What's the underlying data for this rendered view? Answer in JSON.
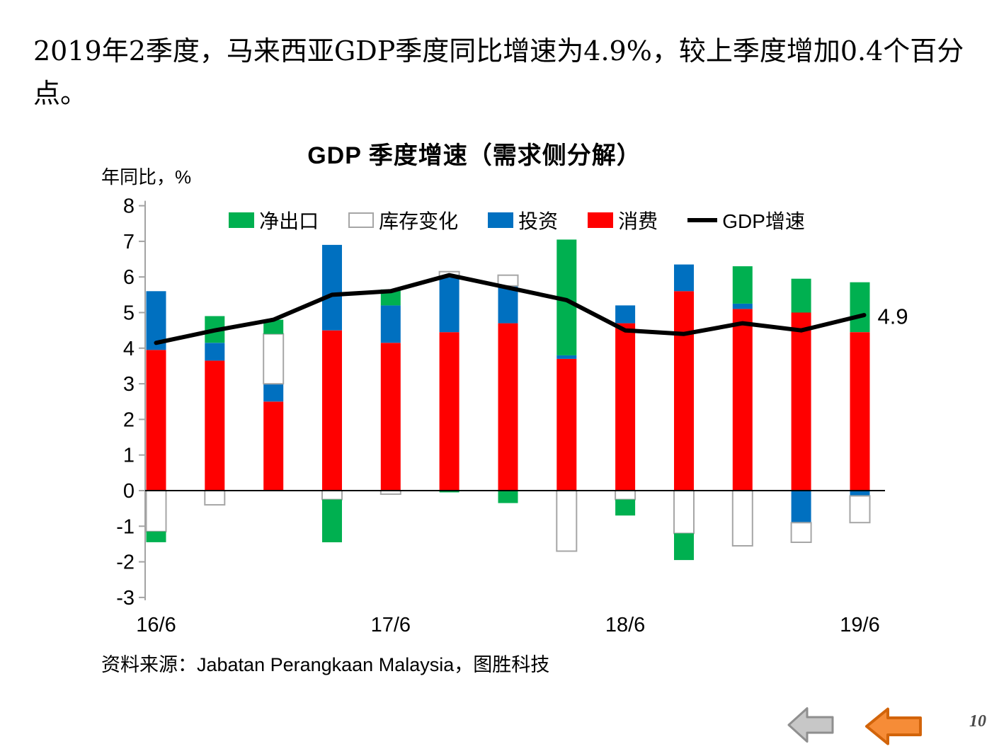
{
  "slide": {
    "heading": "2019年2季度，马来西亚GDP季度同比增速为4.9%，较上季度增加0.4个百分点。",
    "source": "资料来源：Jabatan Perangkaan Malaysia，图胜科技",
    "page_number": "10"
  },
  "nav": {
    "prev_arrow_gray": "left-arrow",
    "prev_arrow_orange": "left-arrow",
    "gray_fill": "#C7C7C7",
    "gray_border": "#8F8F8F",
    "orange_fill": "#F68C37",
    "orange_border": "#D2640A"
  },
  "chart_data": {
    "type": "bar",
    "stacked": true,
    "title": "GDP 季度增速（需求侧分解）",
    "ylabel": "年同比，%",
    "grid": false,
    "legend_position": "top-inside",
    "ylim": [
      -3,
      8
    ],
    "yticks": [
      8,
      7,
      6,
      5,
      4,
      3,
      2,
      1,
      0,
      -1,
      -2,
      -3
    ],
    "categories": [
      "16/6",
      "16/9",
      "16/12",
      "17/3",
      "17/6",
      "17/9",
      "17/12",
      "18/3",
      "18/6",
      "18/9",
      "18/12",
      "19/3",
      "19/6"
    ],
    "xticks_shown": [
      "16/6",
      "17/6",
      "18/6",
      "19/6"
    ],
    "series": [
      {
        "name": "消费",
        "color": "#FF0000",
        "values": [
          3.95,
          3.65,
          2.5,
          4.5,
          4.15,
          4.45,
          4.7,
          3.7,
          4.7,
          5.6,
          5.1,
          5.0,
          4.45
        ]
      },
      {
        "name": "投资",
        "color": "#0070C0",
        "values": [
          1.65,
          0.5,
          0.5,
          2.4,
          1.05,
          1.55,
          1.05,
          0.1,
          0.5,
          0.75,
          0.15,
          -0.9,
          -0.15
        ]
      },
      {
        "name": "库存变化",
        "color": "#FFFFFF",
        "border": "#A6A6A6",
        "values": [
          -1.15,
          -0.4,
          1.4,
          -0.25,
          -0.1,
          0.15,
          0.3,
          -1.7,
          -0.25,
          -1.2,
          -1.55,
          -0.55,
          -0.75
        ]
      },
      {
        "name": "净出口",
        "color": "#00B050",
        "values": [
          -0.3,
          0.75,
          0.4,
          -1.2,
          0.45,
          -0.05,
          -0.35,
          3.25,
          -0.45,
          -0.75,
          1.05,
          0.95,
          1.4
        ]
      }
    ],
    "line_series": {
      "name": "GDP增速",
      "color": "#000000",
      "values": [
        4.15,
        4.5,
        4.8,
        5.5,
        5.6,
        6.05,
        5.7,
        5.35,
        4.5,
        4.4,
        4.7,
        4.5,
        4.9
      ]
    },
    "legend_order": [
      "净出口",
      "库存变化",
      "投资",
      "消费",
      "GDP增速"
    ],
    "annotation": {
      "text": "4.9",
      "value": 4.9
    }
  }
}
